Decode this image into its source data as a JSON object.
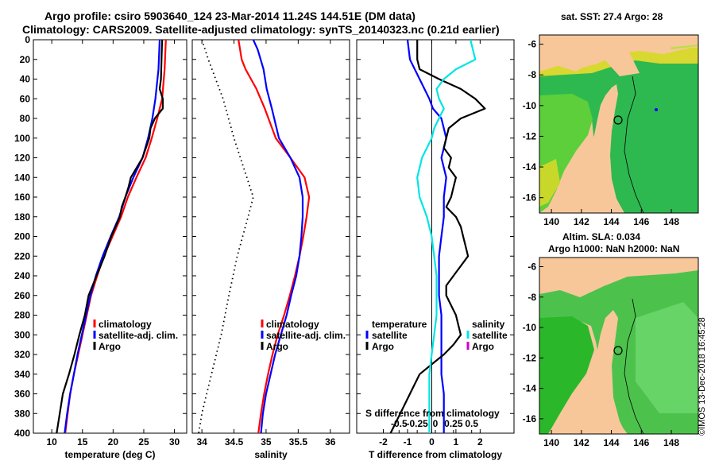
{
  "header": {
    "title_line1": "Argo profile: csiro 5903640_124 23-Mar-2014 11.24S 144.51E (DM data)",
    "title_line2": "Climatology: CARS2009. Satellite-adjusted climatology: synTS_20140323.nc (0.21d earlier)"
  },
  "maps": {
    "sst_title": "sat. SST: 27.4 Argo: 28",
    "sla_title": "Altim. SLA: 0.034",
    "sla_subtitle": "Argo h1000: NaN h2000: NaN",
    "lon_ticks": [
      "140",
      "142",
      "144",
      "146",
      "148"
    ],
    "lat_ticks": [
      "-6",
      "-8",
      "-10",
      "-12",
      "-14",
      "-16"
    ]
  },
  "timestamp": "©IMOS 13-Dec-2018 16:45:28",
  "colors": {
    "climatology": "#ff0000",
    "satellite": "#0000ff",
    "argo": "#000000",
    "cyan": "#00e5e5",
    "magenta": "#cc00cc",
    "land": "#f7c79a"
  },
  "chart_data": [
    {
      "type": "line",
      "name": "temperature-profile",
      "xlabel": "temperature (deg C)",
      "ylabel": "depth",
      "xlim": [
        7,
        32
      ],
      "ylim": [
        400,
        0
      ],
      "xticks": [
        "10",
        "15",
        "20",
        "25",
        "30"
      ],
      "yticks": [
        "0",
        "20",
        "40",
        "60",
        "80",
        "100",
        "120",
        "140",
        "160",
        "180",
        "200",
        "220",
        "240",
        "260",
        "280",
        "300",
        "320",
        "340",
        "360",
        "380",
        "400"
      ],
      "legend": [
        "climatology",
        "satellite-adj. clim.",
        "Argo"
      ],
      "series": [
        {
          "name": "climatology",
          "color": "#ff0000",
          "depth": [
            0,
            30,
            60,
            80,
            100,
            120,
            140,
            160,
            180,
            200,
            220,
            240,
            260,
            280,
            300,
            320,
            340,
            360,
            380,
            400
          ],
          "values": [
            28.6,
            28.4,
            28.0,
            27.2,
            26.3,
            25.3,
            23.8,
            22.4,
            21.3,
            19.9,
            18.5,
            17.4,
            16.4,
            15.7,
            15.0,
            14.3,
            13.6,
            13.0,
            12.6,
            12.2
          ]
        },
        {
          "name": "satellite-adj. clim.",
          "color": "#0000ff",
          "depth": [
            0,
            30,
            60,
            80,
            100,
            120,
            140,
            160,
            180,
            200,
            220,
            240,
            260,
            280,
            300,
            320,
            340,
            360,
            380,
            400
          ],
          "values": [
            27.6,
            27.4,
            26.9,
            26.4,
            25.7,
            24.8,
            23.3,
            22.0,
            21.0,
            19.6,
            18.3,
            17.2,
            16.3,
            15.6,
            14.9,
            14.2,
            13.6,
            13.0,
            12.5,
            12.1
          ]
        },
        {
          "name": "Argo",
          "color": "#000000",
          "depth": [
            0,
            20,
            40,
            50,
            60,
            70,
            80,
            90,
            100,
            120,
            140,
            150,
            160,
            170,
            180,
            200,
            220,
            240,
            260,
            280,
            300,
            320,
            340,
            360,
            380,
            400
          ],
          "values": [
            28.0,
            27.9,
            27.8,
            27.6,
            28.1,
            28.1,
            26.8,
            26.1,
            25.9,
            24.8,
            22.9,
            22.5,
            22.0,
            21.4,
            21.1,
            19.7,
            18.6,
            17.3,
            16.0,
            15.4,
            14.5,
            13.7,
            12.8,
            11.8,
            11.3,
            10.8
          ]
        }
      ]
    },
    {
      "type": "line",
      "name": "salinity-profile",
      "xlabel": "salinity",
      "ylabel": "depth",
      "xlim": [
        33.85,
        36.3
      ],
      "ylim": [
        400,
        0
      ],
      "xticks": [
        "34",
        "34.5",
        "35",
        "35.5",
        "36"
      ],
      "yticks": [],
      "legend": [
        "climatology",
        "satellite-adj. clim.",
        "Argo"
      ],
      "series": [
        {
          "name": "climatology",
          "color": "#ff0000",
          "depth": [
            0,
            20,
            30,
            50,
            70,
            100,
            120,
            140,
            160,
            180,
            200,
            220,
            240,
            260,
            280,
            300,
            320,
            340,
            360,
            380,
            400
          ],
          "values": [
            34.57,
            34.62,
            34.68,
            34.85,
            34.98,
            35.15,
            35.38,
            35.6,
            35.67,
            35.63,
            35.58,
            35.52,
            35.45,
            35.37,
            35.28,
            35.18,
            35.1,
            35.03,
            34.97,
            34.92,
            34.88
          ]
        },
        {
          "name": "satellite-adj. clim.",
          "color": "#0000ff",
          "depth": [
            0,
            10,
            30,
            50,
            70,
            100,
            120,
            140,
            160,
            180,
            200,
            220,
            240,
            260,
            280,
            300,
            320,
            340,
            360,
            380,
            400
          ],
          "values": [
            34.8,
            34.87,
            34.96,
            35.01,
            35.09,
            35.2,
            35.38,
            35.52,
            35.57,
            35.57,
            35.55,
            35.52,
            35.47,
            35.39,
            35.32,
            35.23,
            35.14,
            35.07,
            35.0,
            34.95,
            34.92
          ]
        },
        {
          "name": "Argo",
          "color": "#000000",
          "style": "dotted",
          "depth": [
            0,
            20,
            60,
            100,
            140,
            160,
            180,
            220,
            260,
            300,
            340,
            380,
            400
          ],
          "values": [
            34.0,
            34.1,
            34.33,
            34.5,
            34.7,
            34.8,
            34.72,
            34.55,
            34.42,
            34.3,
            34.15,
            34.0,
            33.95
          ]
        }
      ]
    },
    {
      "type": "line",
      "name": "difference-profile",
      "xlabel": "T difference from climatology",
      "xlabel_top": "S difference from climatology",
      "ylabel": "depth",
      "xlim": [
        -3.1,
        3.4
      ],
      "ylim": [
        400,
        0
      ],
      "xticks": [
        "-2",
        "-1",
        "0",
        "1",
        "2"
      ],
      "xticks_secondary": [
        "-0.5",
        "-0.25",
        "0",
        "0.25",
        "0.5"
      ],
      "yticks": [],
      "legend_temperature": [
        "temperature",
        "satellite",
        "Argo"
      ],
      "legend_salinity": [
        "salinity",
        "satellite",
        "Argo"
      ],
      "series": [
        {
          "name": "T satellite",
          "color": "#0000ff",
          "depth": [
            0,
            20,
            40,
            60,
            70,
            80,
            100,
            120,
            140,
            160,
            180,
            200,
            220,
            240,
            260,
            280,
            300,
            320,
            340,
            360,
            380,
            400
          ],
          "values": [
            -1.0,
            -0.9,
            -0.5,
            -0.1,
            0.05,
            0.4,
            0.6,
            0.4,
            0.6,
            0.5,
            0.5,
            0.4,
            0.3,
            0.3,
            0.3,
            0.4,
            0.4,
            0.4,
            0.4,
            0.5,
            0.5,
            0.5
          ]
        },
        {
          "name": "T Argo",
          "color": "#000000",
          "depth": [
            0,
            20,
            30,
            40,
            50,
            60,
            70,
            80,
            90,
            100,
            110,
            120,
            130,
            140,
            150,
            160,
            170,
            180,
            190,
            200,
            210,
            220,
            230,
            240,
            250,
            260,
            270,
            280,
            290,
            300,
            310,
            320,
            330,
            340,
            360,
            380,
            400
          ],
          "values": [
            -0.6,
            -0.6,
            -0.5,
            0.3,
            1.2,
            1.8,
            2.2,
            1.2,
            0.7,
            0.6,
            0.5,
            0.8,
            0.7,
            1.0,
            0.9,
            0.8,
            0.6,
            1.0,
            1.2,
            1.3,
            1.4,
            1.5,
            1.2,
            0.9,
            0.6,
            0.6,
            0.8,
            1.0,
            1.1,
            1.2,
            0.9,
            0.5,
            0.0,
            -0.5,
            -0.9,
            -1.3,
            -1.7
          ]
        },
        {
          "name": "S satellite",
          "color": "#00e5e5",
          "depth": [
            0,
            10,
            20,
            30,
            40,
            50,
            60,
            70,
            80,
            90,
            100,
            120,
            140,
            160,
            180,
            200,
            220,
            240,
            260,
            280,
            300,
            320,
            340,
            360,
            380,
            400
          ],
          "values": [
            1.6,
            1.7,
            1.8,
            1.0,
            0.5,
            0.2,
            0.3,
            0.5,
            0.3,
            0.1,
            0.0,
            -0.4,
            -0.6,
            -0.5,
            -0.2,
            0.0,
            0.1,
            0.2,
            0.2,
            0.2,
            0.1,
            0.0,
            -0.1,
            -0.1,
            -0.1,
            -0.1
          ]
        }
      ]
    }
  ]
}
